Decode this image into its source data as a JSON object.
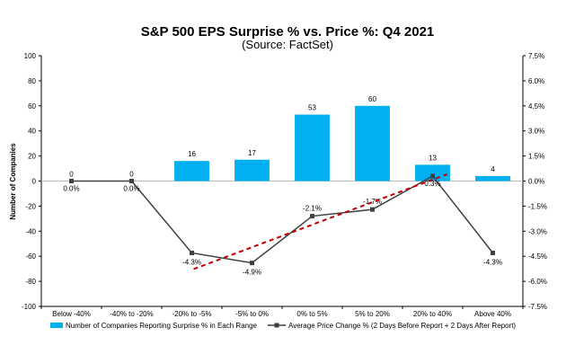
{
  "chart_data": {
    "type": "bar+line",
    "title": "S&P 500 EPS Surprise % vs. Price %: Q4 2021",
    "subtitle": "(Source: FactSet)",
    "ylabel": "Number of Companies",
    "categories": [
      "Below -40%",
      "-40% to -20%",
      "-20% to -5%",
      "-5% to 0%",
      "0% to 5%",
      "5% to 20%",
      "20% to 40%",
      "Above 40%"
    ],
    "left_axis": {
      "min": -100,
      "max": 100,
      "step": 20,
      "ticks": [
        "-100",
        "-80",
        "-60",
        "-40",
        "-20",
        "0",
        "20",
        "40",
        "60",
        "80",
        "100"
      ]
    },
    "right_axis": {
      "min": -7.5,
      "max": 7.5,
      "step": 1.5,
      "ticks": [
        "-7.5%",
        "-6.0%",
        "-4.5%",
        "-3.0%",
        "-1.5%",
        "0.0%",
        "1.5%",
        "3.0%",
        "4.5%",
        "6.0%",
        "7.5%"
      ]
    },
    "series": [
      {
        "name": "Number of Companies Reporting Surprise % in Each Range",
        "type": "bar",
        "axis": "left",
        "color": "#00b0f0",
        "values": [
          0,
          0,
          16,
          17,
          53,
          60,
          13,
          4
        ],
        "labels": [
          "0",
          "0",
          "16",
          "17",
          "53",
          "60",
          "13",
          "4"
        ]
      },
      {
        "name": "Average Price Change % (2 Days Before Report + 2 Days After Report)",
        "type": "line",
        "axis": "right",
        "color": "#404040",
        "values": [
          0.0,
          0.0,
          -4.3,
          -4.9,
          -2.1,
          -1.7,
          0.3,
          -4.3
        ],
        "labels": [
          "0.0%",
          "0.0%",
          "-4.3%",
          "-4.9%",
          "-2.1%",
          "-1.7%",
          "0.3%",
          "-4.3%"
        ]
      }
    ],
    "trendline": {
      "color": "#c00000",
      "style": "dashed",
      "from_category": 2,
      "to_category": 6,
      "from_value": -4.3,
      "to_value": 0.3
    }
  }
}
